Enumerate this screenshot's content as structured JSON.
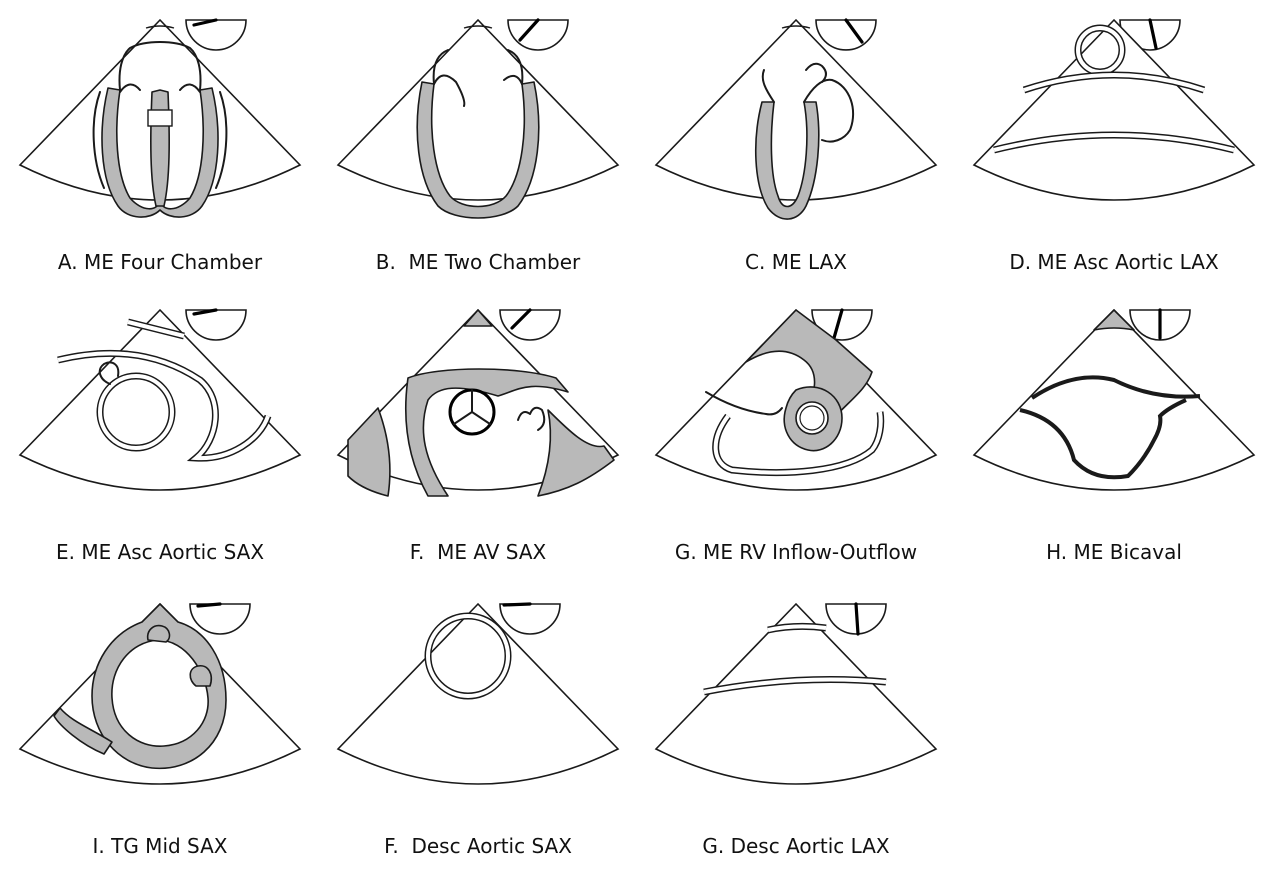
{
  "panels": [
    {
      "caption": "A. ME Four Chamber"
    },
    {
      "caption": "B.  ME Two Chamber"
    },
    {
      "caption": "C. ME LAX"
    },
    {
      "caption": "D. ME Asc Aortic LAX"
    },
    {
      "caption": "E. ME Asc Aortic SAX"
    },
    {
      "caption": "F.  ME AV SAX"
    },
    {
      "caption": "G. ME RV Inflow-Outflow"
    },
    {
      "caption": "H. ME Bicaval"
    },
    {
      "caption": "I. TG Mid SAX"
    },
    {
      "caption": "F.  Desc Aortic SAX"
    },
    {
      "caption": "G. Desc Aortic LAX"
    }
  ]
}
